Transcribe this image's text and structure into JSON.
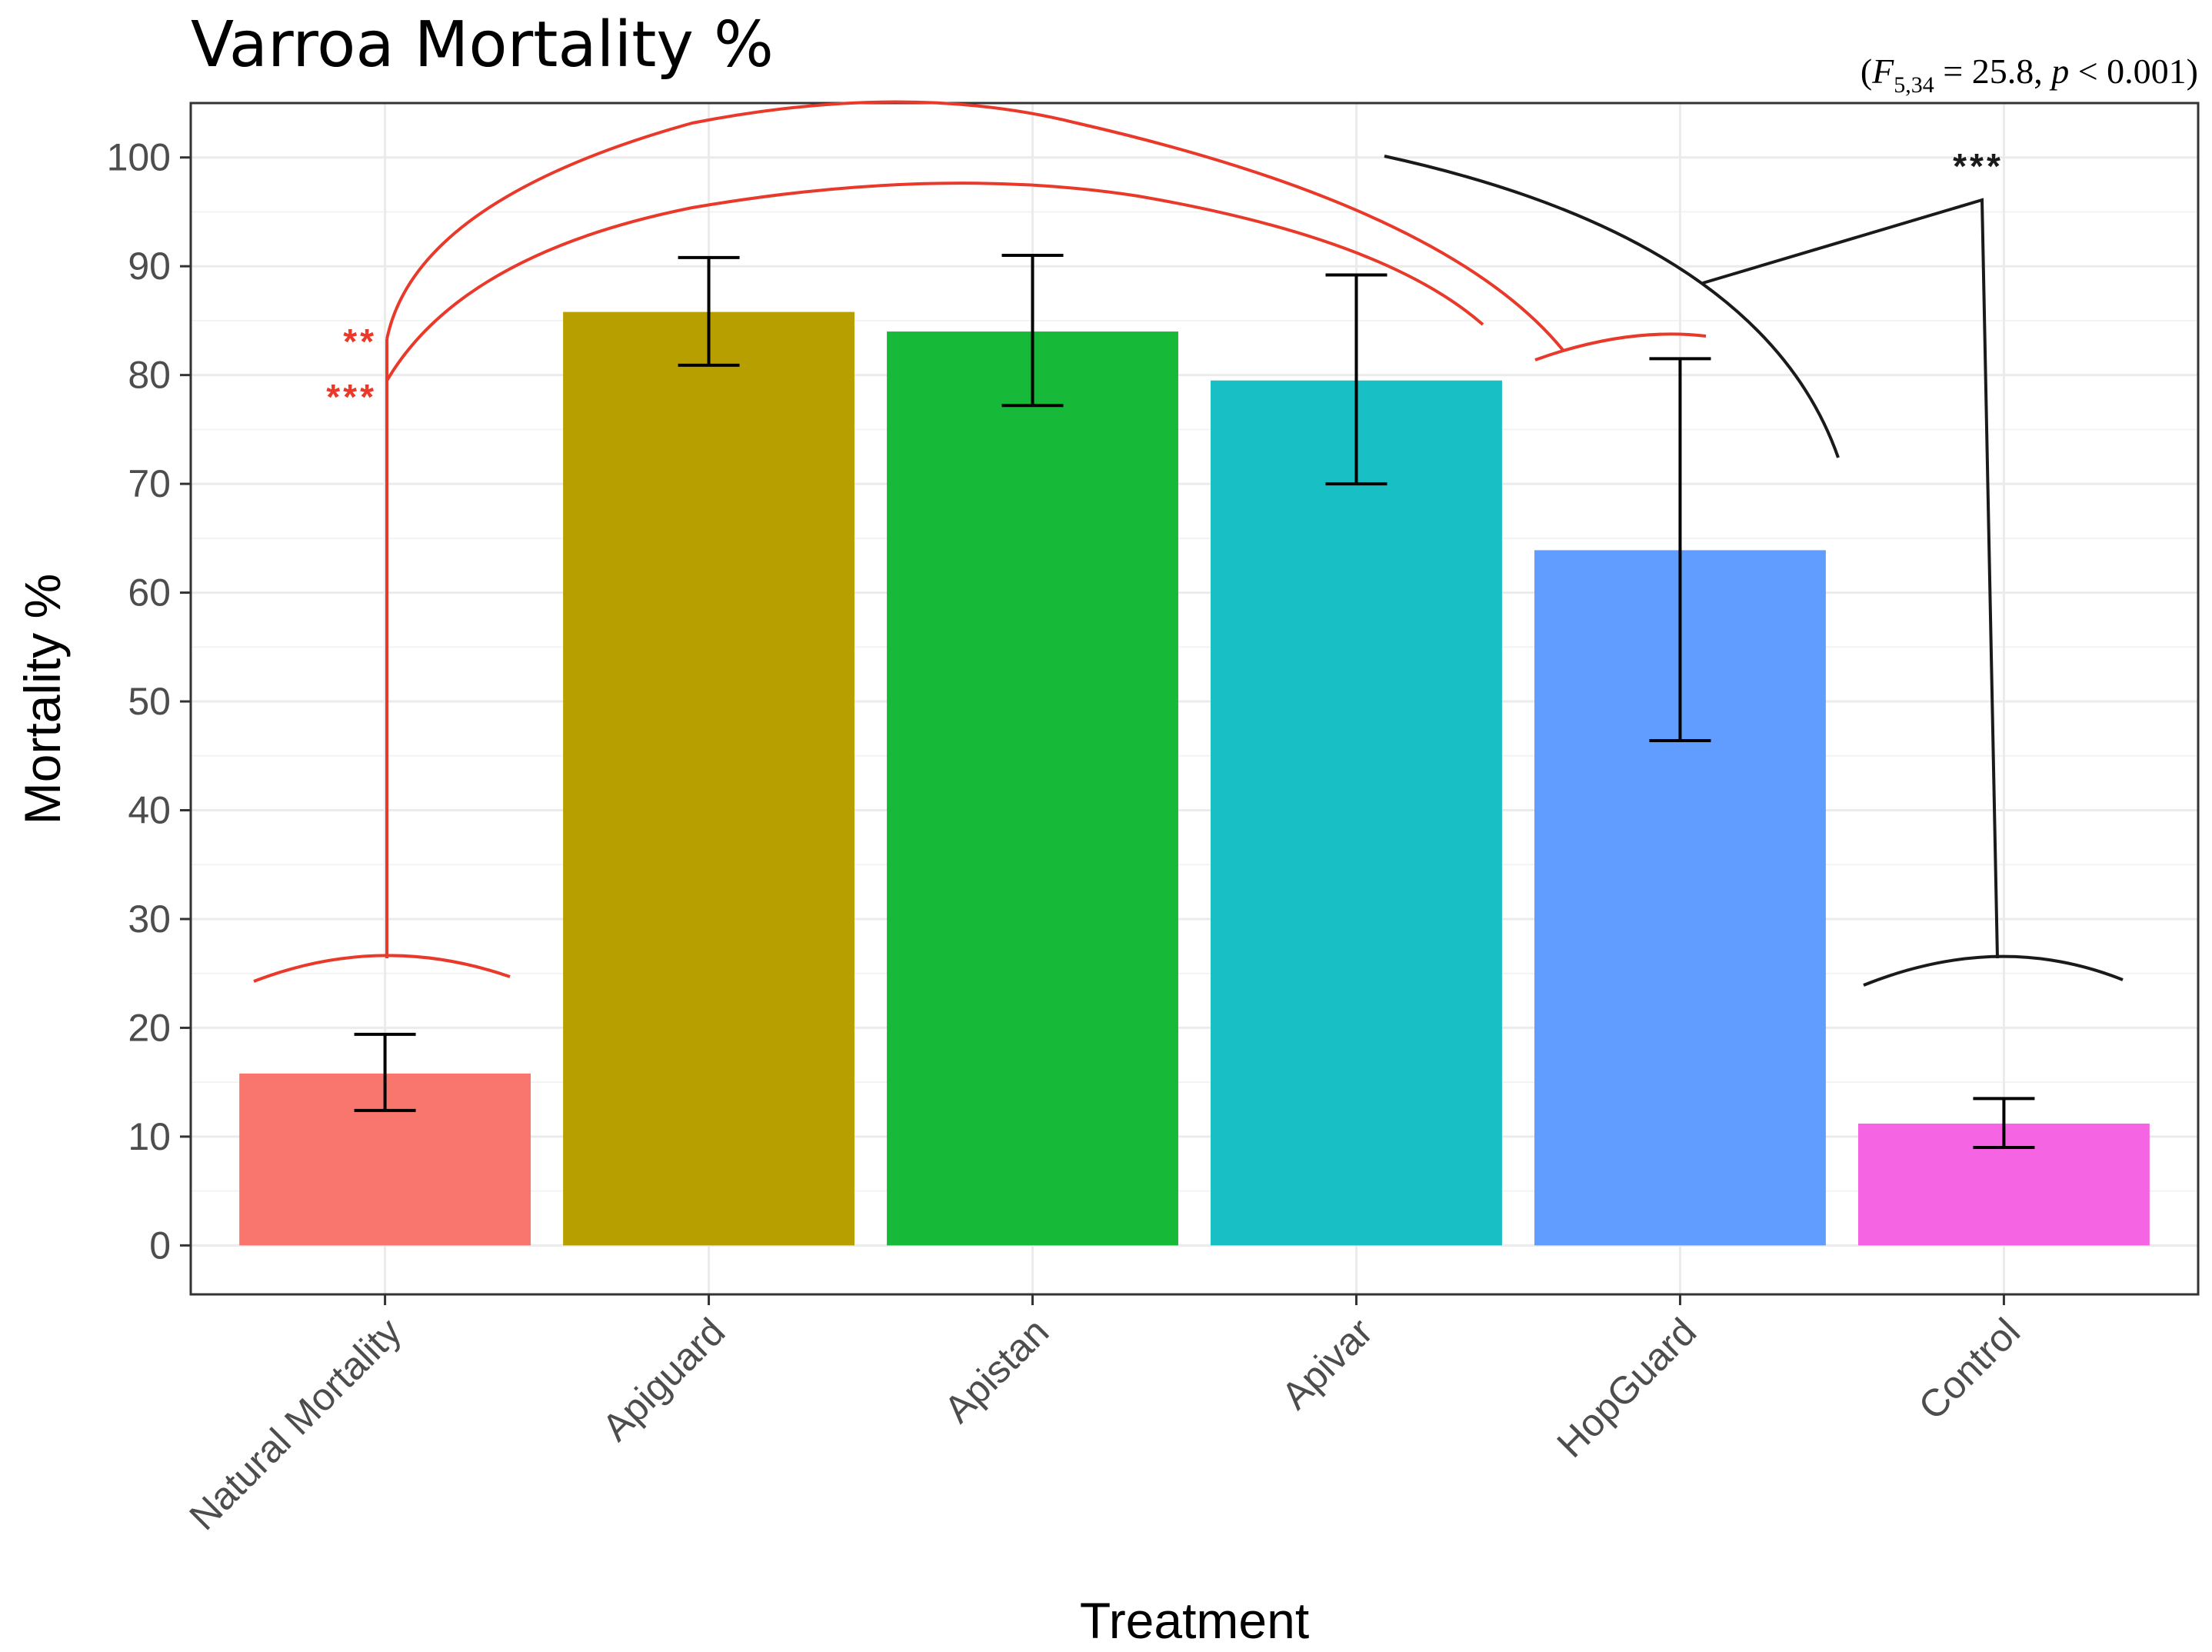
{
  "chart_data": {
    "type": "bar",
    "title": "Varroa Mortality %",
    "stat_annotation": {
      "F_symbol": "F",
      "df": "5,34",
      "rest": " = 25.8, ",
      "p_symbol": "p",
      "p_rest": " < 0.001"
    },
    "xlabel": "Treatment",
    "ylabel": "Mortality %",
    "ylim": [
      -4.5,
      105
    ],
    "yticks": [
      0,
      10,
      20,
      30,
      40,
      50,
      60,
      70,
      80,
      90,
      100
    ],
    "categories": [
      "Natural Mortality",
      "Apiguard",
      "Apistan",
      "Apivar",
      "HopGuard",
      "Control"
    ],
    "values": [
      15.8,
      85.8,
      84.0,
      79.5,
      63.9,
      11.2
    ],
    "error_low": [
      12.4,
      80.9,
      77.2,
      70.0,
      46.4,
      9.0
    ],
    "error_high": [
      19.4,
      90.8,
      91.0,
      89.2,
      81.5,
      13.5
    ],
    "colors": [
      "#F8766D",
      "#B79F00",
      "#16BA38",
      "#18BFC4",
      "#619CFF",
      "#F564E3"
    ],
    "significance": [
      {
        "label": "**",
        "color": "#e8392a"
      },
      {
        "label": "***",
        "color": "#e8392a"
      },
      {
        "label": "***",
        "color": "#1a1a1a"
      }
    ]
  }
}
